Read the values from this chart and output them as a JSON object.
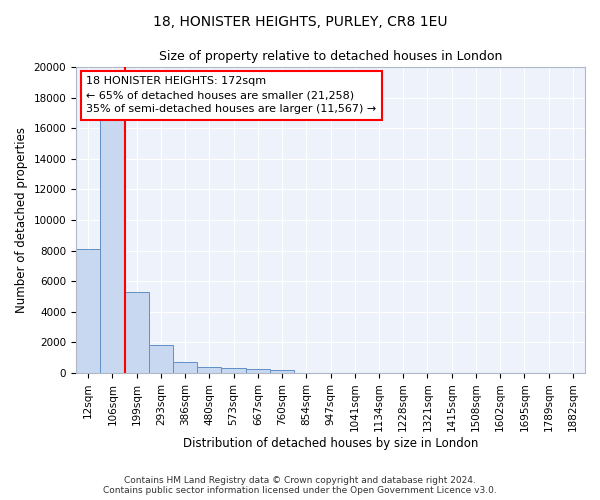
{
  "title": "18, HONISTER HEIGHTS, PURLEY, CR8 1EU",
  "subtitle": "Size of property relative to detached houses in London",
  "xlabel": "Distribution of detached houses by size in London",
  "ylabel": "Number of detached properties",
  "bar_color": "#c8d8f0",
  "bar_edge_color": "#6090c8",
  "background_color": "#edf2fb",
  "grid_color": "#d0d8e8",
  "annotation_text": "18 HONISTER HEIGHTS: 172sqm\n← 65% of detached houses are smaller (21,258)\n35% of semi-detached houses are larger (11,567) →",
  "x_labels": [
    "12sqm",
    "106sqm",
    "199sqm",
    "293sqm",
    "386sqm",
    "480sqm",
    "573sqm",
    "667sqm",
    "760sqm",
    "854sqm",
    "947sqm",
    "1041sqm",
    "1134sqm",
    "1228sqm",
    "1321sqm",
    "1415sqm",
    "1508sqm",
    "1602sqm",
    "1695sqm",
    "1789sqm",
    "1882sqm"
  ],
  "bar_heights": [
    8100,
    16700,
    5300,
    1800,
    700,
    400,
    300,
    250,
    200,
    0,
    0,
    0,
    0,
    0,
    0,
    0,
    0,
    0,
    0,
    0,
    0
  ],
  "red_line_bin": 1,
  "ylim": [
    0,
    20000
  ],
  "yticks": [
    0,
    2000,
    4000,
    6000,
    8000,
    10000,
    12000,
    14000,
    16000,
    18000,
    20000
  ],
  "footer_text": "Contains HM Land Registry data © Crown copyright and database right 2024.\nContains public sector information licensed under the Open Government Licence v3.0.",
  "title_fontsize": 10,
  "subtitle_fontsize": 9,
  "annotation_fontsize": 8,
  "axis_fontsize": 8.5,
  "tick_fontsize": 7.5
}
